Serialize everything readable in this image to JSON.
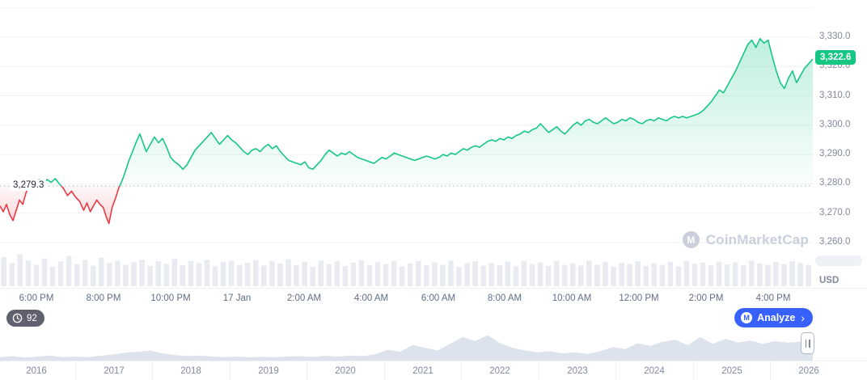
{
  "colors": {
    "up": "#16c784",
    "down": "#ea3943",
    "accent_blue": "#3861fb",
    "grid": "#eff2f5",
    "axis_text": "#808a9d",
    "volume_bar": "#e8ebf0",
    "timeline_fill": "#dde3ec",
    "watermark": "#c9d0dc"
  },
  "watermark": {
    "label": "CoinMarketCap",
    "logo_letter": "M"
  },
  "controls": {
    "history_badge": "92",
    "analyze_label": "Analyze",
    "analyze_chevron": "›"
  },
  "timeline": {
    "year_labels": [
      "2016",
      "2017",
      "2018",
      "2019",
      "2020",
      "2021",
      "2022",
      "2023",
      "2024",
      "2025",
      "2026"
    ]
  },
  "chart_data": [
    {
      "type": "line",
      "title": "",
      "unit": "USD",
      "current_price": 3322.6,
      "current_price_label": "3,322.6",
      "baseline_price": 3279.3,
      "baseline_label": "3,279.3",
      "y_ticks": [
        3330,
        3320,
        3310,
        3300,
        3290,
        3280,
        3270,
        3260
      ],
      "y_tick_labels": [
        "3,330.0",
        "3,320.0",
        "3,310.0",
        "3,300.0",
        "3,290.0",
        "3,280.0",
        "3,270.0",
        "3,260.0"
      ],
      "x_tick_labels": [
        "6:00 PM",
        "8:00 PM",
        "10:00 PM",
        "17 Jan",
        "2:00 AM",
        "4:00 AM",
        "6:00 AM",
        "8:00 AM",
        "10:00 AM",
        "12:00 PM",
        "2:00 PM",
        "4:00 PM"
      ],
      "ylim": [
        3255,
        3342
      ],
      "up_color": "#16c784",
      "down_color": "#ea3943",
      "points": [
        [
          0.0,
          3272.5
        ],
        [
          0.004,
          3270.5
        ],
        [
          0.008,
          3273
        ],
        [
          0.012,
          3269.5
        ],
        [
          0.016,
          3267.5
        ],
        [
          0.02,
          3271
        ],
        [
          0.024,
          3274.5
        ],
        [
          0.028,
          3273
        ],
        [
          0.032,
          3277
        ],
        [
          0.036,
          3279.5
        ],
        [
          0.04,
          3281
        ],
        [
          0.044,
          3280
        ],
        [
          0.048,
          3281.5
        ],
        [
          0.053,
          3280
        ],
        [
          0.058,
          3281.5
        ],
        [
          0.063,
          3280.5
        ],
        [
          0.068,
          3281.8
        ],
        [
          0.073,
          3280
        ],
        [
          0.078,
          3278.5
        ],
        [
          0.083,
          3276
        ],
        [
          0.088,
          3277.5
        ],
        [
          0.093,
          3275.5
        ],
        [
          0.098,
          3274
        ],
        [
          0.103,
          3271
        ],
        [
          0.107,
          3273.5
        ],
        [
          0.111,
          3270.5
        ],
        [
          0.115,
          3272.5
        ],
        [
          0.119,
          3274.5
        ],
        [
          0.123,
          3273
        ],
        [
          0.127,
          3272
        ],
        [
          0.131,
          3268.5
        ],
        [
          0.134,
          3266.5
        ],
        [
          0.138,
          3272
        ],
        [
          0.142,
          3275
        ],
        [
          0.146,
          3278.5
        ],
        [
          0.15,
          3281
        ],
        [
          0.154,
          3284
        ],
        [
          0.158,
          3287.5
        ],
        [
          0.163,
          3291
        ],
        [
          0.168,
          3294.5
        ],
        [
          0.172,
          3297
        ],
        [
          0.176,
          3294
        ],
        [
          0.18,
          3291
        ],
        [
          0.185,
          3293.5
        ],
        [
          0.19,
          3296
        ],
        [
          0.195,
          3294
        ],
        [
          0.2,
          3295.5
        ],
        [
          0.205,
          3292.5
        ],
        [
          0.21,
          3289
        ],
        [
          0.215,
          3287.5
        ],
        [
          0.22,
          3286.5
        ],
        [
          0.225,
          3285
        ],
        [
          0.23,
          3286.5
        ],
        [
          0.235,
          3289
        ],
        [
          0.24,
          3291.5
        ],
        [
          0.245,
          3293
        ],
        [
          0.25,
          3294.5
        ],
        [
          0.255,
          3296
        ],
        [
          0.26,
          3297.5
        ],
        [
          0.265,
          3295.5
        ],
        [
          0.27,
          3293.5
        ],
        [
          0.275,
          3295
        ],
        [
          0.28,
          3296.5
        ],
        [
          0.285,
          3295
        ],
        [
          0.29,
          3294
        ],
        [
          0.295,
          3292.5
        ],
        [
          0.3,
          3291
        ],
        [
          0.305,
          3290
        ],
        [
          0.31,
          3291.5
        ],
        [
          0.315,
          3292
        ],
        [
          0.32,
          3291
        ],
        [
          0.325,
          3292.5
        ],
        [
          0.33,
          3293.5
        ],
        [
          0.335,
          3292
        ],
        [
          0.34,
          3293
        ],
        [
          0.345,
          3291
        ],
        [
          0.35,
          3289.5
        ],
        [
          0.355,
          3288
        ],
        [
          0.36,
          3287.5
        ],
        [
          0.365,
          3287
        ],
        [
          0.37,
          3286.5
        ],
        [
          0.375,
          3287.5
        ],
        [
          0.38,
          3285.5
        ],
        [
          0.385,
          3285
        ],
        [
          0.39,
          3286.5
        ],
        [
          0.395,
          3288
        ],
        [
          0.4,
          3290
        ],
        [
          0.405,
          3291.5
        ],
        [
          0.41,
          3290.5
        ],
        [
          0.415,
          3289.5
        ],
        [
          0.42,
          3290.5
        ],
        [
          0.425,
          3290
        ],
        [
          0.43,
          3291
        ],
        [
          0.435,
          3290
        ],
        [
          0.44,
          3289
        ],
        [
          0.445,
          3288.5
        ],
        [
          0.45,
          3288
        ],
        [
          0.455,
          3287.5
        ],
        [
          0.46,
          3287
        ],
        [
          0.465,
          3288
        ],
        [
          0.47,
          3289
        ],
        [
          0.475,
          3288.5
        ],
        [
          0.48,
          3289.5
        ],
        [
          0.485,
          3290.5
        ],
        [
          0.49,
          3290
        ],
        [
          0.495,
          3289.5
        ],
        [
          0.5,
          3289
        ],
        [
          0.505,
          3288.5
        ],
        [
          0.51,
          3288
        ],
        [
          0.515,
          3288.5
        ],
        [
          0.52,
          3289
        ],
        [
          0.525,
          3289.5
        ],
        [
          0.53,
          3289
        ],
        [
          0.535,
          3288.5
        ],
        [
          0.54,
          3289
        ],
        [
          0.545,
          3290
        ],
        [
          0.55,
          3289.5
        ],
        [
          0.555,
          3290.5
        ],
        [
          0.56,
          3290
        ],
        [
          0.565,
          3291
        ],
        [
          0.57,
          3292
        ],
        [
          0.575,
          3291.5
        ],
        [
          0.58,
          3292.5
        ],
        [
          0.585,
          3293
        ],
        [
          0.59,
          3292.5
        ],
        [
          0.595,
          3293.5
        ],
        [
          0.6,
          3294.5
        ],
        [
          0.605,
          3295
        ],
        [
          0.61,
          3294.5
        ],
        [
          0.615,
          3295.5
        ],
        [
          0.62,
          3295
        ],
        [
          0.625,
          3296
        ],
        [
          0.63,
          3295.5
        ],
        [
          0.635,
          3296.5
        ],
        [
          0.64,
          3297
        ],
        [
          0.645,
          3298
        ],
        [
          0.65,
          3297.5
        ],
        [
          0.655,
          3298.5
        ],
        [
          0.66,
          3299
        ],
        [
          0.665,
          3300.5
        ],
        [
          0.67,
          3299
        ],
        [
          0.675,
          3297.5
        ],
        [
          0.68,
          3298.5
        ],
        [
          0.685,
          3299.5
        ],
        [
          0.69,
          3298
        ],
        [
          0.695,
          3297
        ],
        [
          0.7,
          3298.5
        ],
        [
          0.705,
          3300
        ],
        [
          0.71,
          3301
        ],
        [
          0.715,
          3300
        ],
        [
          0.72,
          3301.5
        ],
        [
          0.725,
          3302
        ],
        [
          0.73,
          3301
        ],
        [
          0.735,
          3300.5
        ],
        [
          0.74,
          3301.5
        ],
        [
          0.745,
          3302.5
        ],
        [
          0.75,
          3301.5
        ],
        [
          0.755,
          3300.5
        ],
        [
          0.76,
          3301
        ],
        [
          0.765,
          3302
        ],
        [
          0.77,
          3301.5
        ],
        [
          0.775,
          3302.5
        ],
        [
          0.78,
          3302
        ],
        [
          0.785,
          3301
        ],
        [
          0.79,
          3300.5
        ],
        [
          0.795,
          3301.5
        ],
        [
          0.8,
          3302
        ],
        [
          0.805,
          3301.5
        ],
        [
          0.81,
          3302.5
        ],
        [
          0.815,
          3302
        ],
        [
          0.82,
          3301.5
        ],
        [
          0.825,
          3302.5
        ],
        [
          0.83,
          3303
        ],
        [
          0.835,
          3302.5
        ],
        [
          0.84,
          3303
        ],
        [
          0.845,
          3302.5
        ],
        [
          0.85,
          3303
        ],
        [
          0.855,
          3303.5
        ],
        [
          0.86,
          3304
        ],
        [
          0.865,
          3305
        ],
        [
          0.87,
          3306.5
        ],
        [
          0.875,
          3308
        ],
        [
          0.88,
          3310
        ],
        [
          0.885,
          3312
        ],
        [
          0.89,
          3311
        ],
        [
          0.895,
          3313.5
        ],
        [
          0.9,
          3316
        ],
        [
          0.905,
          3318.5
        ],
        [
          0.91,
          3321.5
        ],
        [
          0.915,
          3324.5
        ],
        [
          0.92,
          3327.5
        ],
        [
          0.925,
          3329
        ],
        [
          0.93,
          3326.5
        ],
        [
          0.935,
          3329.5
        ],
        [
          0.94,
          3328
        ],
        [
          0.945,
          3329
        ],
        [
          0.95,
          3323.5
        ],
        [
          0.955,
          3318.5
        ],
        [
          0.96,
          3314.5
        ],
        [
          0.965,
          3312.5
        ],
        [
          0.97,
          3316
        ],
        [
          0.975,
          3318.5
        ],
        [
          0.98,
          3314.5
        ],
        [
          0.985,
          3317
        ],
        [
          0.99,
          3319.5
        ],
        [
          0.995,
          3321
        ],
        [
          1.0,
          3322.6
        ]
      ],
      "volume_relative": [
        0.82,
        0.65,
        0.9,
        0.72,
        0.6,
        0.78,
        0.55,
        0.7,
        0.85,
        0.62,
        0.74,
        0.58,
        0.8,
        0.66,
        0.72,
        0.6,
        0.68,
        0.75,
        0.57,
        0.7,
        0.63,
        0.77,
        0.59,
        0.71,
        0.65,
        0.74,
        0.56,
        0.68,
        0.72,
        0.6,
        0.66,
        0.73,
        0.58,
        0.7,
        0.64,
        0.76,
        0.6,
        0.69,
        0.55,
        0.72,
        0.62,
        0.7,
        0.57,
        0.66,
        0.73,
        0.59,
        0.68,
        0.62,
        0.7,
        0.56,
        0.64,
        0.71,
        0.58,
        0.67,
        0.6,
        0.72,
        0.55,
        0.65,
        0.7,
        0.58,
        0.66,
        0.6,
        0.69,
        0.56,
        0.71,
        0.62,
        0.67,
        0.57,
        0.7,
        0.6,
        0.65,
        0.58,
        0.72,
        0.61,
        0.68,
        0.55,
        0.66,
        0.62,
        0.7,
        0.57,
        0.64,
        0.6,
        0.68,
        0.56,
        0.71,
        0.63,
        0.66,
        0.58,
        0.69,
        0.61,
        0.67,
        0.59,
        0.72,
        0.64,
        0.6,
        0.68,
        0.62,
        0.7,
        0.65,
        0.6
      ]
    },
    {
      "type": "area",
      "title": "",
      "categories": [
        "2016",
        "2017",
        "2018",
        "2019",
        "2020",
        "2021",
        "2022",
        "2023",
        "2024",
        "2025",
        "2026"
      ],
      "fill_color": "#dde3ec",
      "values_relative": [
        0.1,
        0.14,
        0.08,
        0.12,
        0.16,
        0.1,
        0.12,
        0.1,
        0.15,
        0.2,
        0.26,
        0.3,
        0.34,
        0.24,
        0.18,
        0.14,
        0.16,
        0.12,
        0.1,
        0.12,
        0.09,
        0.11,
        0.1,
        0.12,
        0.14,
        0.11,
        0.15,
        0.12,
        0.16,
        0.14,
        0.2,
        0.38,
        0.3,
        0.55,
        0.45,
        0.35,
        0.6,
        0.85,
        0.7,
        0.92,
        0.62,
        0.45,
        0.35,
        0.28,
        0.32,
        0.24,
        0.28,
        0.22,
        0.32,
        0.48,
        0.4,
        0.62,
        0.52,
        0.68,
        0.75,
        0.55,
        0.85,
        0.6,
        0.78,
        0.65,
        0.72,
        0.6,
        0.7,
        0.64,
        0.68,
        0.62
      ]
    }
  ]
}
